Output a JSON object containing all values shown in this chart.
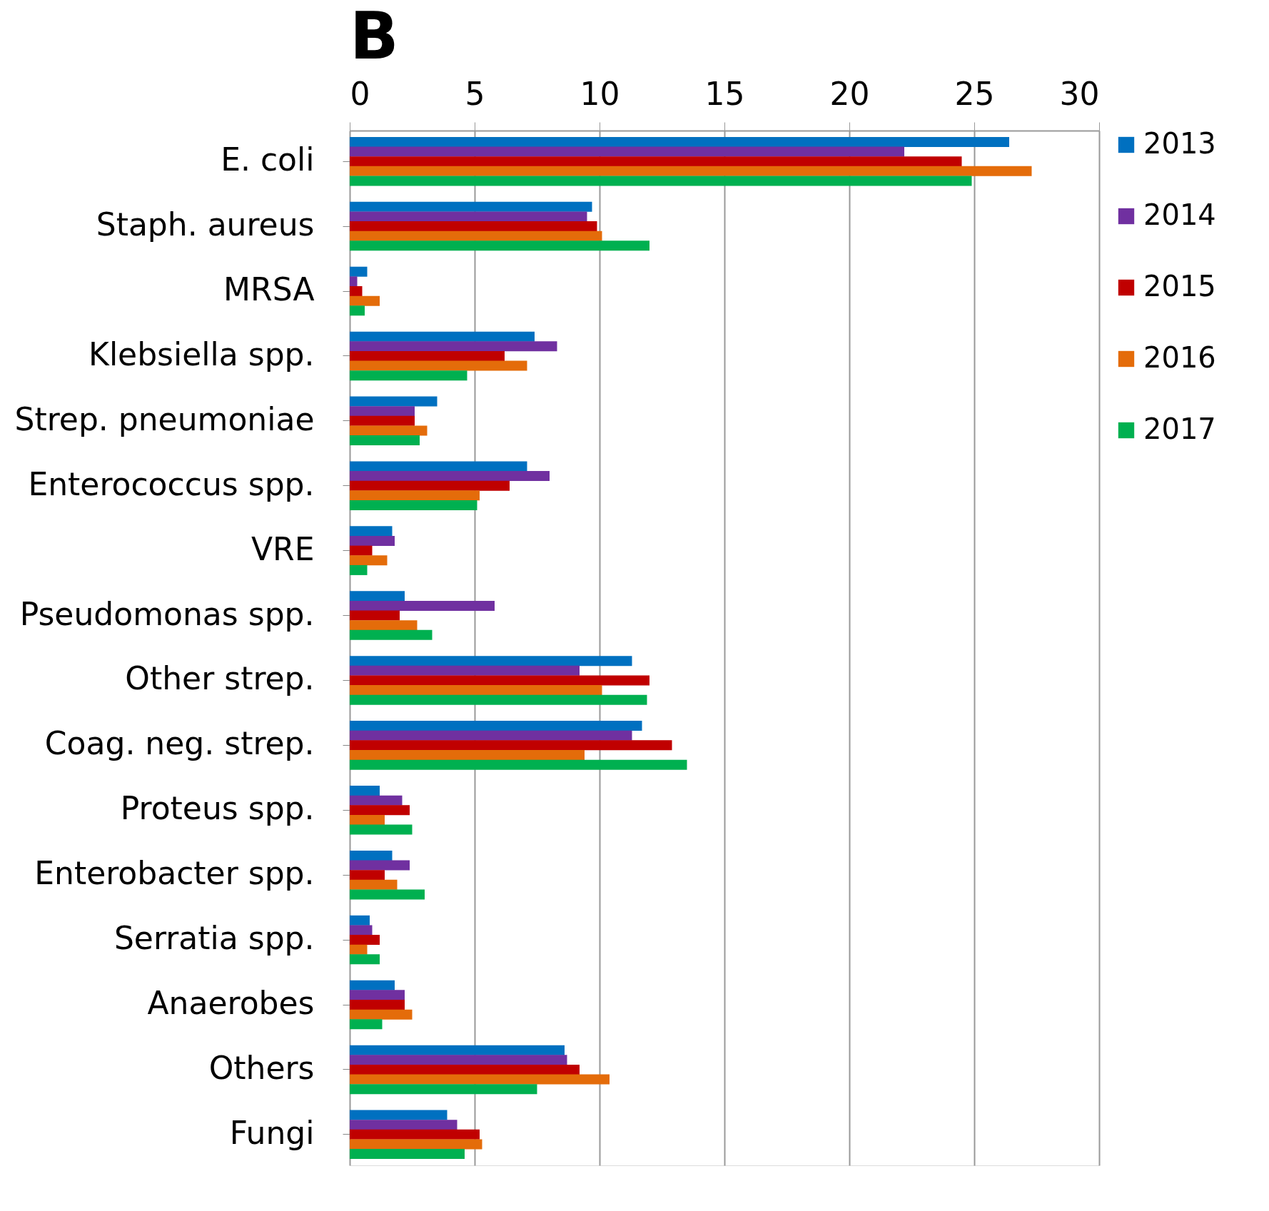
{
  "chart_data": {
    "type": "bar",
    "orientation": "horizontal",
    "annotations": [
      "B"
    ],
    "categories": [
      "E. coli",
      "Staph. aureus",
      "MRSA",
      "Klebsiella spp.",
      "Strep. pneumoniae",
      "Enterococcus spp.",
      "VRE",
      "Pseudomonas spp.",
      "Other strep.",
      "Coag. neg. strep.",
      "Proteus spp.",
      "Enterobacter spp.",
      "Serratia spp.",
      "Anaerobes",
      "Others",
      "Fungi"
    ],
    "series": [
      {
        "name": "2013",
        "color": "#0070c0",
        "values": [
          26.4,
          9.7,
          0.7,
          7.4,
          3.5,
          7.1,
          1.7,
          2.2,
          11.3,
          11.7,
          1.2,
          1.7,
          0.8,
          1.8,
          8.6,
          3.9
        ]
      },
      {
        "name": "2014",
        "color": "#7030a0",
        "values": [
          22.2,
          9.5,
          0.3,
          8.3,
          2.6,
          8.0,
          1.8,
          5.8,
          9.2,
          11.3,
          2.1,
          2.4,
          0.9,
          2.2,
          8.7,
          4.3
        ]
      },
      {
        "name": "2015",
        "color": "#c00000",
        "values": [
          24.5,
          9.9,
          0.5,
          6.2,
          2.6,
          6.4,
          0.9,
          2.0,
          12.0,
          12.9,
          2.4,
          1.4,
          1.2,
          2.2,
          9.2,
          5.2
        ]
      },
      {
        "name": "2016",
        "color": "#e46c0a",
        "values": [
          27.3,
          10.1,
          1.2,
          7.1,
          3.1,
          5.2,
          1.5,
          2.7,
          10.1,
          9.4,
          1.4,
          1.9,
          0.7,
          2.5,
          10.4,
          5.3
        ]
      },
      {
        "name": "2017",
        "color": "#00b050",
        "values": [
          24.9,
          12.0,
          0.6,
          4.7,
          2.8,
          5.1,
          0.7,
          3.3,
          11.9,
          13.5,
          2.5,
          3.0,
          1.2,
          1.3,
          7.5,
          4.6
        ]
      }
    ],
    "xlim": [
      0,
      30
    ],
    "xticks": [
      0,
      5,
      10,
      15,
      20,
      25,
      30
    ],
    "grid": "x",
    "legend": "right"
  }
}
